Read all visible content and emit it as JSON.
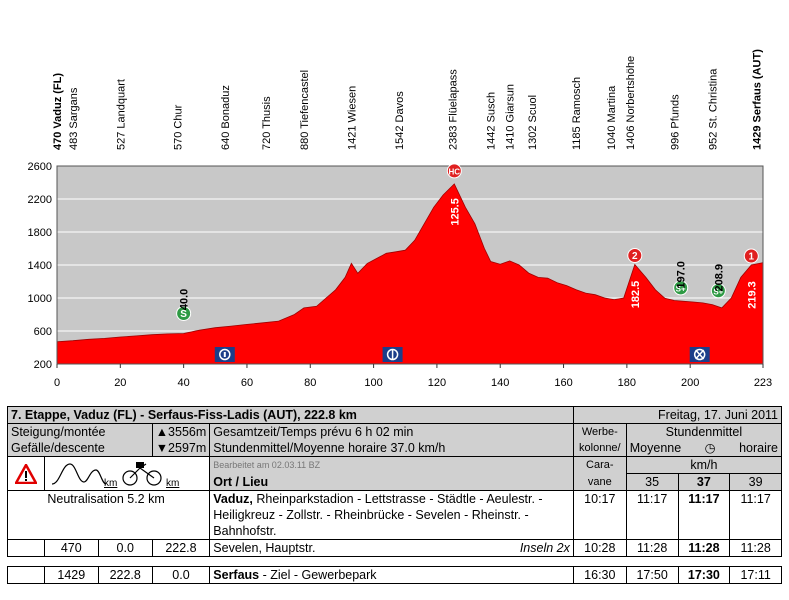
{
  "chart_data": {
    "type": "area",
    "xlim": [
      0,
      223
    ],
    "ylim": [
      200,
      2600
    ],
    "x_ticks": [
      0,
      20,
      40,
      60,
      80,
      100,
      120,
      140,
      160,
      180,
      200,
      223
    ],
    "y_ticks": [
      200,
      600,
      1000,
      1400,
      1800,
      2200,
      2600
    ],
    "profile_km": [
      0,
      5,
      10,
      15,
      20,
      25,
      30,
      35,
      40,
      45,
      50,
      55,
      60,
      65,
      70,
      75,
      78,
      82,
      85,
      88,
      91,
      93,
      95,
      98,
      101,
      104,
      107,
      110,
      113,
      116,
      119,
      122,
      125.5,
      129,
      132,
      135,
      137,
      140,
      143,
      146,
      149,
      152,
      155,
      158,
      161,
      164,
      167,
      170,
      173,
      176,
      179,
      182.5,
      186,
      189,
      192,
      195,
      198,
      201,
      204,
      207,
      210,
      213,
      216,
      219.3,
      223
    ],
    "profile_elev": [
      470,
      483,
      500,
      510,
      527,
      540,
      555,
      565,
      570,
      610,
      640,
      660,
      680,
      700,
      720,
      800,
      880,
      900,
      1000,
      1100,
      1250,
      1421,
      1300,
      1420,
      1480,
      1542,
      1560,
      1580,
      1700,
      1900,
      2100,
      2250,
      2383,
      2100,
      1900,
      1600,
      1442,
      1410,
      1450,
      1400,
      1302,
      1250,
      1240,
      1185,
      1150,
      1100,
      1060,
      1040,
      1000,
      980,
      1000,
      1406,
      1250,
      1100,
      996,
      970,
      960,
      952,
      940,
      920,
      880,
      1000,
      1250,
      1400,
      1429
    ],
    "places": [
      {
        "km": 0,
        "label": "470 Vaduz (FL)",
        "bold": true
      },
      {
        "km": 5,
        "label": "483 Sargans"
      },
      {
        "km": 20,
        "label": "527 Landquart"
      },
      {
        "km": 38,
        "label": "570 Chur"
      },
      {
        "km": 53,
        "label": "640 Bonaduz"
      },
      {
        "km": 66,
        "label": "720 Thusis"
      },
      {
        "km": 78,
        "label": "880 Tiefencastel"
      },
      {
        "km": 93,
        "label": "1421 Wiesen"
      },
      {
        "km": 108,
        "label": "1542 Davos"
      },
      {
        "km": 125,
        "label": "2383 Flüelapass"
      },
      {
        "km": 137,
        "label": "1442 Susch"
      },
      {
        "km": 143,
        "label": "1410 Giarsun"
      },
      {
        "km": 150,
        "label": "1302 Scuol"
      },
      {
        "km": 164,
        "label": "1185 Ramosch"
      },
      {
        "km": 175,
        "label": "1040 Martina"
      },
      {
        "km": 181,
        "label": "1406 Norbertshöhe"
      },
      {
        "km": 195,
        "label": "996 Pfunds"
      },
      {
        "km": 207,
        "label": "952 St. Christina"
      },
      {
        "km": 221,
        "label": "1429 Serfaus (AUT)",
        "bold": true
      }
    ],
    "annotations": [
      {
        "km": 40.0,
        "elev": 570,
        "label": "40.0",
        "marker": "S",
        "marker_color": "#2e9a44"
      },
      {
        "km": 125.5,
        "elev": 2383,
        "label": "125.5",
        "marker": "HC",
        "marker_color": "#e02020"
      },
      {
        "km": 182.5,
        "elev": 1406,
        "label": "182.5",
        "marker": "2",
        "marker_color": "#e02020"
      },
      {
        "km": 197.0,
        "elev": 965,
        "label": "197.0",
        "marker": "S+",
        "marker_color": "#2e9a44"
      },
      {
        "km": 208.9,
        "elev": 930,
        "label": "208.9",
        "marker": "S+",
        "marker_color": "#2e9a44"
      },
      {
        "km": 219.3,
        "elev": 1400,
        "label": "219.3",
        "marker": "1",
        "marker_color": "#e02020"
      }
    ],
    "icons": [
      {
        "km": 53,
        "name": "info-badge-icon"
      },
      {
        "km": 106,
        "name": "feed-zone-icon"
      },
      {
        "km": 203,
        "name": "cross-badge-icon"
      }
    ],
    "colors": {
      "fill": "#ff0000",
      "background": "#c8c8c8",
      "grid": "#ffffff"
    },
    "grid": true
  },
  "stage": {
    "title": "7. Etappe, Vaduz (FL) - Serfaus-Fiss-Ladis (AUT), 222.8 km",
    "date": "Freitag, 17. Juni 2011",
    "climb_label": "Steigung/montée",
    "climb_value": "▲3556m",
    "descent_label": "Gefälle/descente",
    "descent_value": "▼2597m",
    "total_time": "Gesamtzeit/Temps prévu 6 h 02 min",
    "avg_speed": "Stundenmittel/Moyenne horaire 37.0 km/h",
    "werbe_1": "Werbe-",
    "werbe_2": "kolonne/",
    "werbe_3": "Cara-",
    "werbe_4": "vane",
    "avg_header": "Stundenmittel",
    "moyenne": "Moyenne",
    "horaire": "horaire",
    "kmh": "km/h",
    "speed_cols": [
      "35",
      "37",
      "39"
    ],
    "edited": "Bearbeitet am 02.03.11 BZ",
    "ort_lieu": "Ort / Lieu",
    "km_label_1": "km",
    "km_label_2": "km"
  },
  "rows": [
    {
      "neutral": "Neutralisation 5.2 km",
      "place_bold": "Vaduz,",
      "place_rest": " Rheinparkstadion - Lettstrasse - Städtle - Aeulestr. - Heiligkreuz - Zollstr. - Rheinbrücke - Sevelen - Rheinstr. - Bahnhofstr.",
      "caravan": "10:17",
      "t35": "11:17",
      "t37": "11:17",
      "t39": "11:17"
    },
    {
      "elev": "470",
      "km_done": "0.0",
      "km_left": "222.8",
      "place": "Sevelen, Hauptstr.",
      "note": "Inseln 2x",
      "caravan": "10:28",
      "t35": "11:28",
      "t37": "11:28",
      "t39": "11:28"
    },
    {
      "elev": "1429",
      "km_done": "222.8",
      "km_left": "0.0",
      "place_bold": "Serfaus",
      "place_rest": " - Ziel - Gewerbepark",
      "caravan": "16:30",
      "t35": "17:50",
      "t37": "17:30",
      "t39": "17:11"
    }
  ]
}
